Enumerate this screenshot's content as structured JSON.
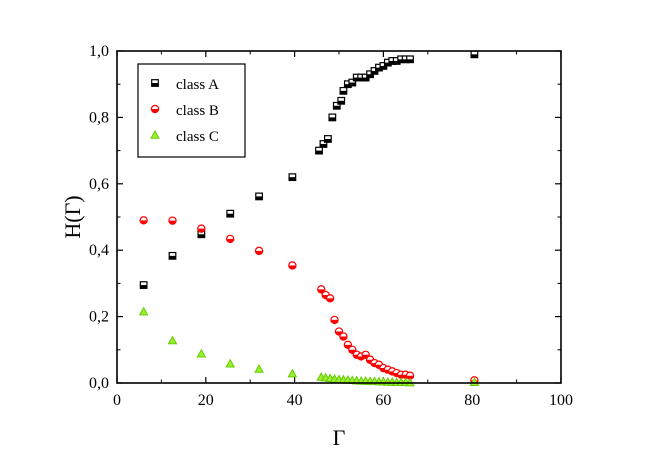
{
  "chart_data": {
    "type": "scatter",
    "xlabel": "Γ",
    "ylabel": "H(Γ)",
    "xlim": [
      0,
      100
    ],
    "ylim": [
      0,
      1
    ],
    "x_ticks": [
      0,
      20,
      40,
      60,
      80,
      100
    ],
    "y_ticks": [
      0,
      0.2,
      0.4,
      0.6,
      0.8,
      1.0
    ],
    "x_tick_labels": [
      "0",
      "20",
      "40",
      "60",
      "80",
      "100"
    ],
    "y_tick_labels": [
      "0,0",
      "0,2",
      "0,4",
      "0,6",
      "0,8",
      "1,0"
    ],
    "grid": false,
    "legend_position": "top-left",
    "series": [
      {
        "name": "class A",
        "marker": "half-square",
        "color": "#000000",
        "fill": "#ffffff",
        "points": [
          [
            6,
            0.295
          ],
          [
            12.5,
            0.383
          ],
          [
            19,
            0.448
          ],
          [
            25.5,
            0.51
          ],
          [
            32,
            0.562
          ],
          [
            39.5,
            0.62
          ],
          [
            45.5,
            0.7
          ],
          [
            46.5,
            0.72
          ],
          [
            47.5,
            0.735
          ],
          [
            48.5,
            0.8
          ],
          [
            49.5,
            0.835
          ],
          [
            50.5,
            0.85
          ],
          [
            51,
            0.88
          ],
          [
            52,
            0.9
          ],
          [
            53,
            0.905
          ],
          [
            54,
            0.92
          ],
          [
            55,
            0.92
          ],
          [
            56,
            0.92
          ],
          [
            57,
            0.93
          ],
          [
            58,
            0.94
          ],
          [
            59,
            0.95
          ],
          [
            60,
            0.955
          ],
          [
            61,
            0.965
          ],
          [
            62,
            0.97
          ],
          [
            63,
            0.97
          ],
          [
            64,
            0.975
          ],
          [
            65,
            0.975
          ],
          [
            66,
            0.975
          ],
          [
            80.5,
            0.99
          ]
        ]
      },
      {
        "name": "class B",
        "marker": "half-circle",
        "color": "#ff0000",
        "fill": "#ffffff",
        "points": [
          [
            6,
            0.49
          ],
          [
            12.5,
            0.489
          ],
          [
            19,
            0.465
          ],
          [
            25.5,
            0.434
          ],
          [
            32,
            0.398
          ],
          [
            39.5,
            0.354
          ],
          [
            46,
            0.282
          ],
          [
            47,
            0.265
          ],
          [
            48,
            0.255
          ],
          [
            49,
            0.19
          ],
          [
            50,
            0.155
          ],
          [
            51,
            0.14
          ],
          [
            52,
            0.115
          ],
          [
            53,
            0.1
          ],
          [
            54,
            0.085
          ],
          [
            55,
            0.08
          ],
          [
            56,
            0.085
          ],
          [
            57,
            0.07
          ],
          [
            58,
            0.06
          ],
          [
            59,
            0.055
          ],
          [
            60,
            0.045
          ],
          [
            61,
            0.04
          ],
          [
            62,
            0.035
          ],
          [
            63,
            0.03
          ],
          [
            64,
            0.025
          ],
          [
            65,
            0.025
          ],
          [
            66,
            0.022
          ],
          [
            80.5,
            0.008
          ]
        ]
      },
      {
        "name": "class C",
        "marker": "triangle",
        "color": "#66cc00",
        "fill": "#99ee33",
        "points": [
          [
            6,
            0.215
          ],
          [
            12.5,
            0.128
          ],
          [
            19,
            0.088
          ],
          [
            25.5,
            0.058
          ],
          [
            32,
            0.042
          ],
          [
            39.5,
            0.028
          ],
          [
            46,
            0.018
          ],
          [
            47,
            0.016
          ],
          [
            48,
            0.014
          ],
          [
            49,
            0.012
          ],
          [
            50,
            0.011
          ],
          [
            51,
            0.01
          ],
          [
            52,
            0.009
          ],
          [
            53,
            0.008
          ],
          [
            54,
            0.007
          ],
          [
            55,
            0.006
          ],
          [
            56,
            0.006
          ],
          [
            57,
            0.005
          ],
          [
            58,
            0.005
          ],
          [
            59,
            0.004
          ],
          [
            60,
            0.004
          ],
          [
            61,
            0.003
          ],
          [
            62,
            0.003
          ],
          [
            63,
            0.002
          ],
          [
            64,
            0.002
          ],
          [
            65,
            0.002
          ],
          [
            66,
            0.001
          ],
          [
            80.5,
            0.002
          ]
        ]
      }
    ]
  }
}
